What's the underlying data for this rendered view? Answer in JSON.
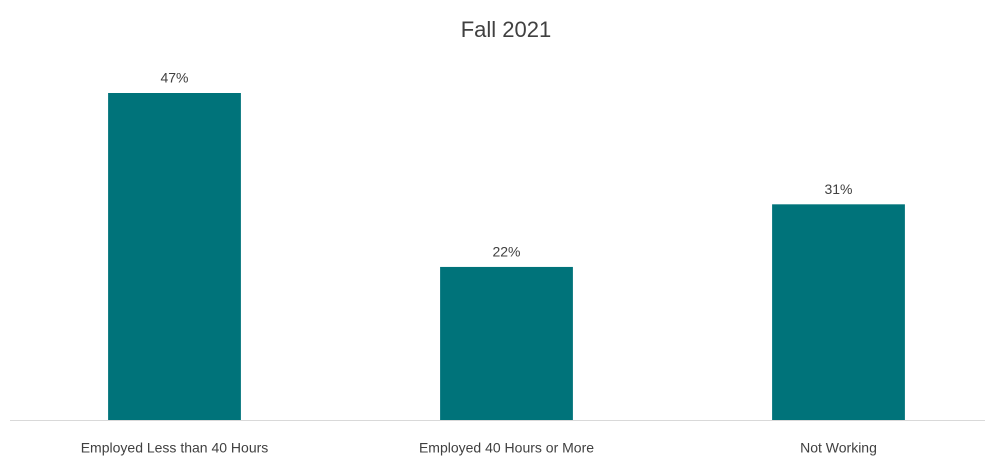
{
  "chart_data": {
    "type": "bar",
    "title": "Fall 2021",
    "categories": [
      "Employed Less than 40 Hours",
      "Employed 40 Hours or More",
      "Not Working"
    ],
    "values": [
      47,
      22,
      31
    ],
    "value_labels": [
      "47%",
      "22%",
      "31%"
    ],
    "color": "#00737a"
  }
}
